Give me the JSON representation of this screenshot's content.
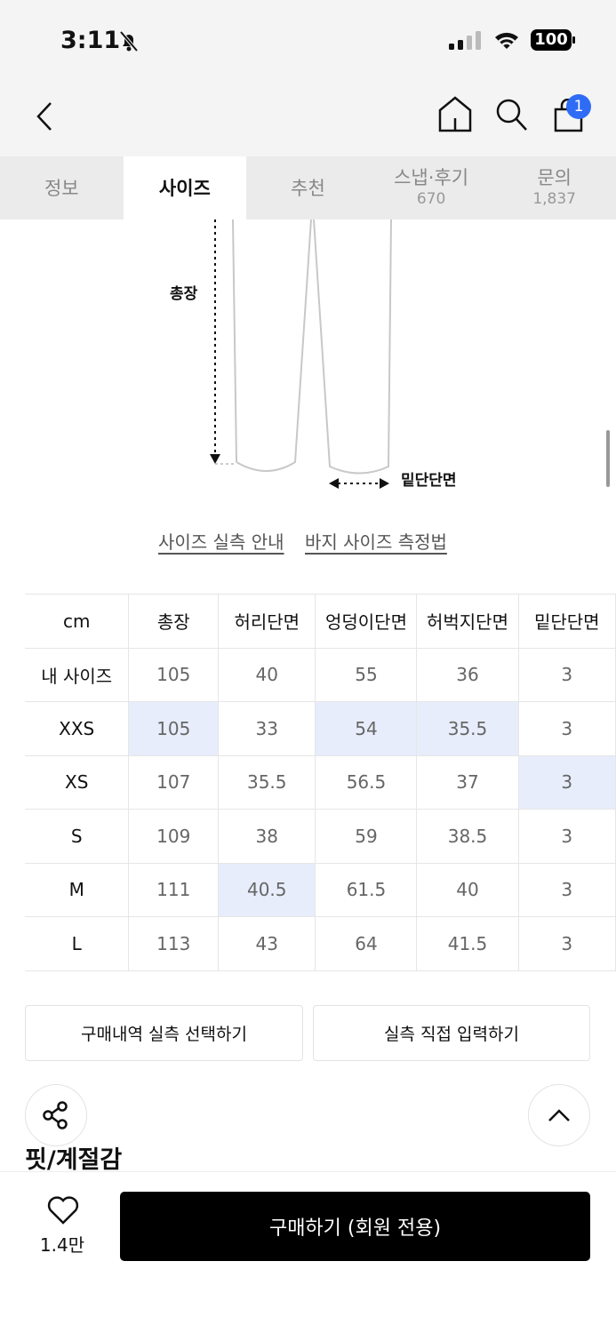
{
  "status": {
    "time": "3:11",
    "battery": "100",
    "icons": [
      "bell-slash-icon",
      "signal-icon",
      "wifi-icon",
      "battery-icon"
    ]
  },
  "nav": {
    "cart_badge": "1",
    "icons": [
      "chevron-left-icon",
      "home-icon",
      "search-icon",
      "cart-icon"
    ]
  },
  "tabs": [
    {
      "label": "정보"
    },
    {
      "label": "사이즈",
      "active": true
    },
    {
      "label": "추천"
    },
    {
      "label": "스냅·후기",
      "count": "670"
    },
    {
      "label": "문의",
      "count": "1,837"
    }
  ],
  "diagram": {
    "length_label": "총장",
    "hem_label": "밑단단면"
  },
  "links": {
    "size_guide": "사이즈 실측 안내",
    "measure_guide": "바지 사이즈 측정법"
  },
  "size_table": {
    "headers": [
      "cm",
      "총장",
      "허리단면",
      "엉덩이단면",
      "허벅지단면",
      "밑단단면"
    ],
    "rows": [
      {
        "cells": [
          "내 사이즈",
          "105",
          "40",
          "55",
          "36",
          "3"
        ],
        "highlight": []
      },
      {
        "cells": [
          "XXS",
          "105",
          "33",
          "54",
          "35.5",
          "3"
        ],
        "highlight": [
          1,
          3,
          4
        ]
      },
      {
        "cells": [
          "XS",
          "107",
          "35.5",
          "56.5",
          "37",
          "3"
        ],
        "highlight": [
          5
        ]
      },
      {
        "cells": [
          "S",
          "109",
          "38",
          "59",
          "38.5",
          "3"
        ],
        "highlight": []
      },
      {
        "cells": [
          "M",
          "111",
          "40.5",
          "61.5",
          "40",
          "3"
        ],
        "highlight": [
          2
        ]
      },
      {
        "cells": [
          "L",
          "113",
          "43",
          "64",
          "41.5",
          "3"
        ],
        "highlight": []
      }
    ],
    "highlight_color": "#e7edfb"
  },
  "buttons": {
    "purchase_history": "구매내역 실측 선택하기",
    "manual_input": "실측 직접 입력하기"
  },
  "section_title": "핏/계절감",
  "bottom": {
    "likes": "1.4만",
    "buy": "구매하기 (회원 전용)"
  },
  "colors": {
    "badge": "#2f6cf6",
    "buy_bg": "#000000"
  }
}
